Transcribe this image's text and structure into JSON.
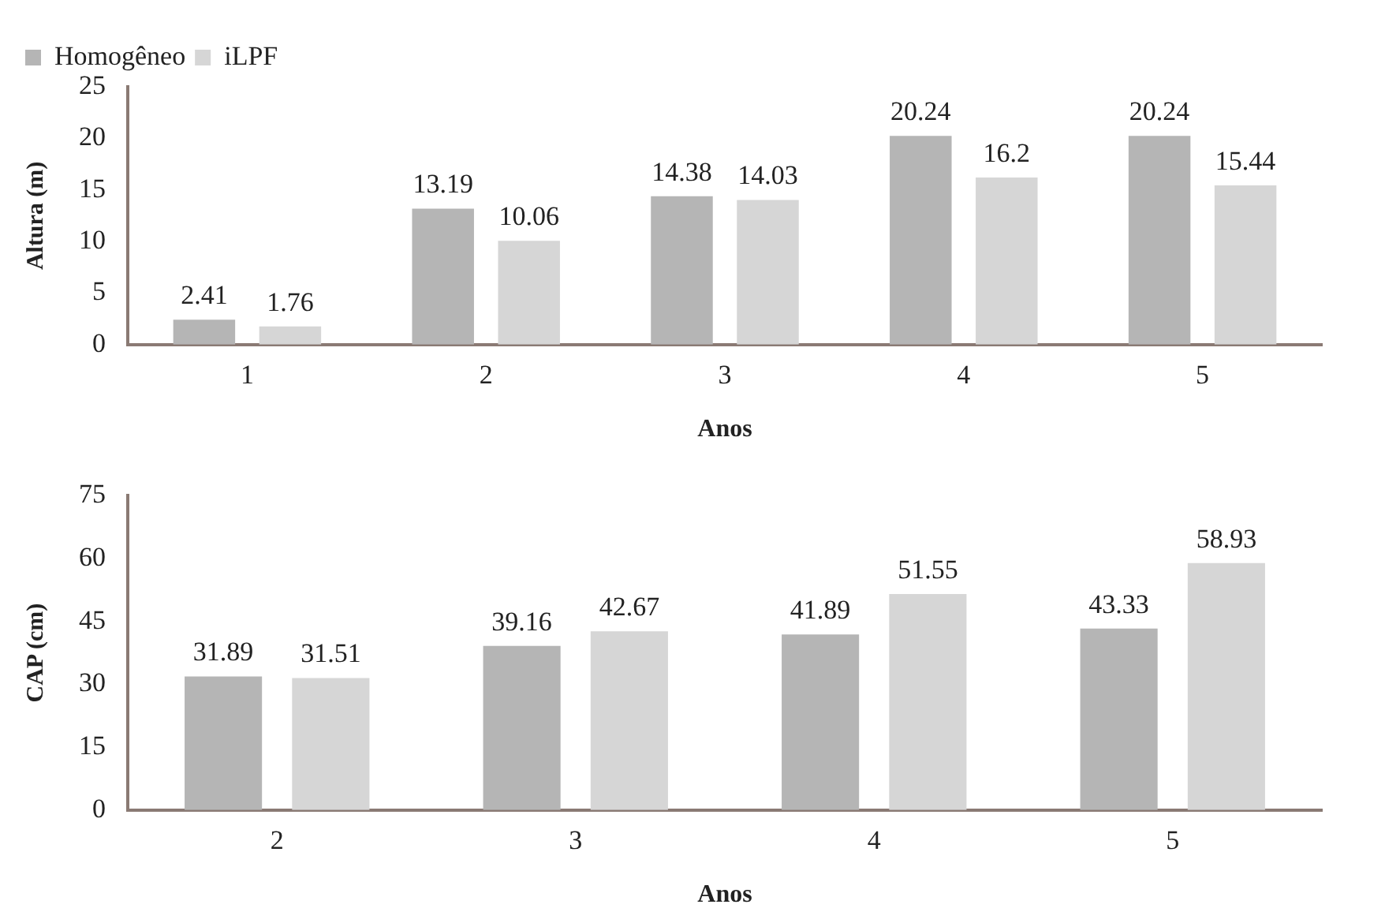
{
  "chart_data": [
    {
      "type": "bar",
      "ylabel": "Altura (m)",
      "xlabel": "Anos",
      "categories": [
        "1",
        "2",
        "3",
        "4",
        "5"
      ],
      "series": [
        {
          "name": "Homogêneo",
          "color": "#b5b5b5",
          "values": [
            2.41,
            13.19,
            14.38,
            20.24,
            20.24
          ]
        },
        {
          "name": "iLPF",
          "color": "#d6d6d6",
          "values": [
            1.76,
            10.06,
            14.03,
            16.2,
            15.44
          ]
        }
      ],
      "ylim": [
        0,
        25
      ],
      "yticks": [
        0,
        5,
        10,
        15,
        20,
        25
      ],
      "grid": false,
      "legend": "top left",
      "data_labels": true
    },
    {
      "type": "bar",
      "ylabel": "CAP (cm)",
      "xlabel": "Anos",
      "categories": [
        "2",
        "3",
        "4",
        "5"
      ],
      "series": [
        {
          "color": "#b5b5b5",
          "values": [
            31.89,
            39.16,
            41.89,
            43.33
          ]
        },
        {
          "color": "#d6d6d6",
          "values": [
            31.51,
            42.67,
            51.55,
            58.93
          ]
        }
      ],
      "ylim": [
        0,
        75
      ],
      "yticks": [
        0,
        15,
        30,
        45,
        60,
        75
      ],
      "grid": false,
      "data_labels": true
    }
  ]
}
